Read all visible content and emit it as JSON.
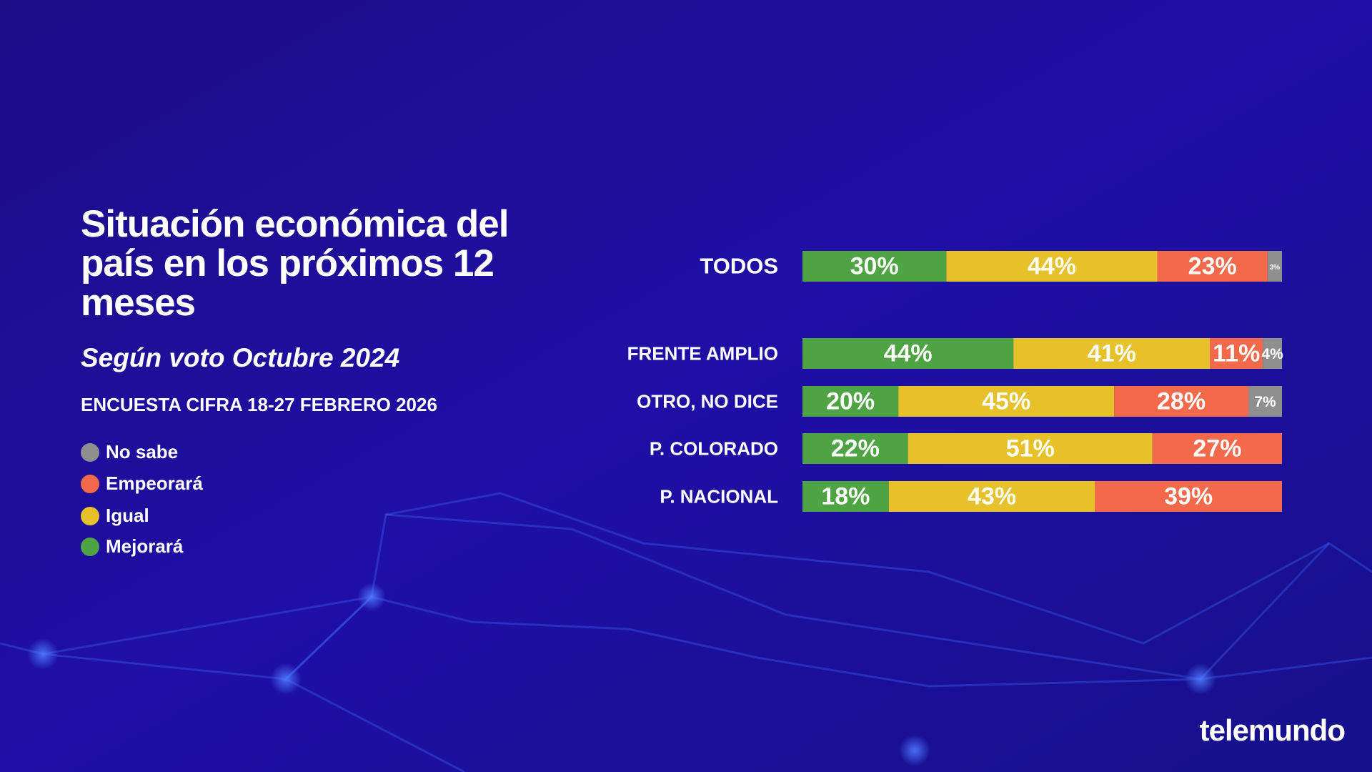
{
  "chart_data": {
    "type": "stacked-bar",
    "title": "Situación económica del país en los próximos 12 meses",
    "subtitle": "Según voto Octubre 2024",
    "note": "ENCUESTA CIFRA 18-27 FEBRERO 2026",
    "brand": "telemundo",
    "categories": [
      "TODOS",
      "FRENTE AMPLIO",
      "OTRO, NO DICE",
      "P. COLORADO",
      "P. NACIONAL"
    ],
    "series": [
      {
        "name": "Mejorará",
        "color": "#4ea443",
        "values": [
          30,
          44,
          20,
          22,
          18
        ],
        "value_labels": [
          "30%",
          "44%",
          "20%",
          "22%",
          "18%"
        ]
      },
      {
        "name": "Igual",
        "color": "#e6c12a",
        "values": [
          44,
          41,
          45,
          51,
          43
        ],
        "value_labels": [
          "44%",
          "41%",
          "45%",
          "51%",
          "43%"
        ]
      },
      {
        "name": "Empeorará",
        "color": "#f4694a",
        "values": [
          23,
          11,
          28,
          27,
          39
        ],
        "value_labels": [
          "23%",
          "11%",
          "28%",
          "27%",
          "39%"
        ]
      },
      {
        "name": "No sabe",
        "color": "#8f8f8f",
        "values": [
          3,
          4,
          7,
          null,
          null
        ],
        "value_labels": [
          "3%",
          "4%",
          "7%",
          null,
          null
        ]
      }
    ]
  }
}
